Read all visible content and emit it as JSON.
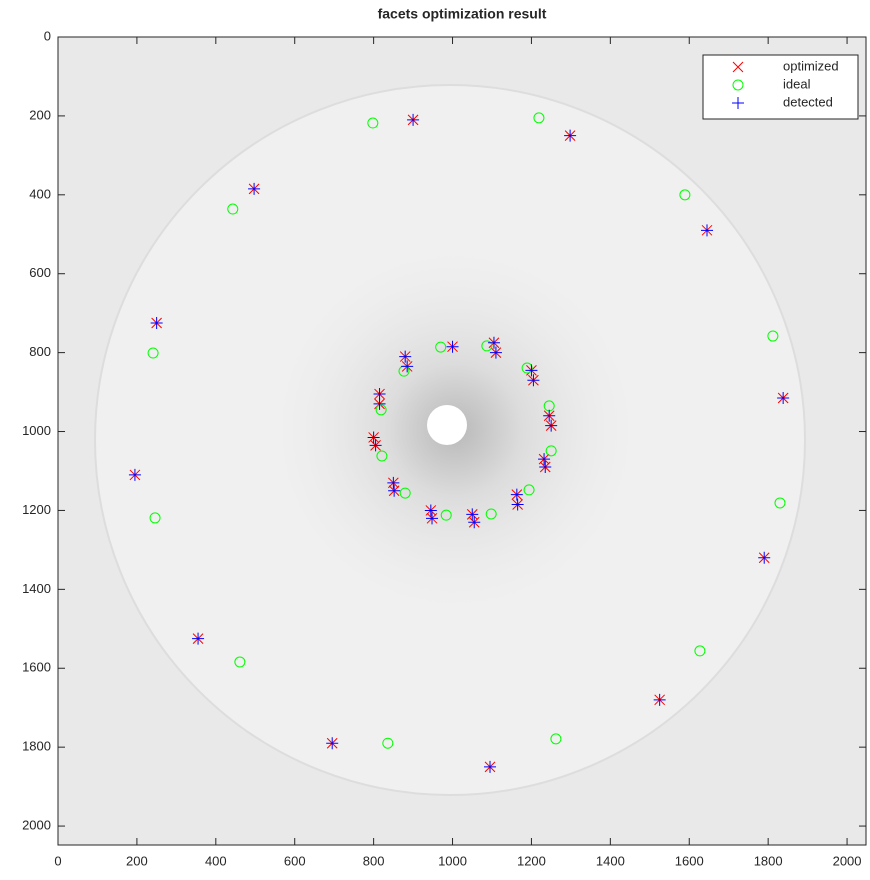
{
  "chart_data": {
    "type": "scatter",
    "title": "facets optimization result",
    "xlim": [
      0,
      2048
    ],
    "ylim": [
      0,
      2048
    ],
    "y_reversed": true,
    "xticks": [
      0,
      200,
      400,
      600,
      800,
      1000,
      1200,
      1400,
      1600,
      1800,
      2000
    ],
    "yticks": [
      0,
      200,
      400,
      600,
      800,
      1000,
      1200,
      1400,
      1600,
      1800,
      2000
    ],
    "legend": "top-right",
    "series": [
      {
        "name": "optimized",
        "color": "#ff0000",
        "marker": "x",
        "x": [
          900,
          1298,
          497,
          1645,
          250,
          1838,
          195,
          1790,
          355,
          1525,
          695,
          1095,
          1000,
          1105,
          1110,
          880,
          885,
          1200,
          1205,
          815,
          815,
          1245,
          1250,
          800,
          805,
          1232,
          1235,
          850,
          852,
          1163,
          1165,
          945,
          948,
          1050,
          1055
        ],
        "y": [
          210,
          250,
          385,
          490,
          725,
          915,
          1110,
          1320,
          1525,
          1680,
          1790,
          1850,
          785,
          775,
          800,
          810,
          835,
          845,
          870,
          905,
          930,
          960,
          985,
          1015,
          1035,
          1070,
          1090,
          1130,
          1150,
          1160,
          1185,
          1200,
          1220,
          1210,
          1230
        ]
      },
      {
        "name": "ideal",
        "color": "#00ff00",
        "marker": "o",
        "x": [
          798,
          1219,
          443,
          1589,
          241,
          1812,
          246,
          1830,
          461,
          1627,
          836,
          1262,
          970,
          1087,
          877,
          1189,
          819,
          1245,
          821,
          1250,
          880,
          1194,
          984,
          1098
        ],
        "y": [
          218,
          205,
          436,
          400,
          801,
          758,
          1219,
          1181,
          1584,
          1556,
          1790,
          1779,
          786,
          783,
          847,
          839,
          945,
          935,
          1062,
          1049,
          1156,
          1148,
          1212,
          1209
        ]
      },
      {
        "name": "detected",
        "color": "#0000ff",
        "marker": "+",
        "x": [
          900,
          1298,
          497,
          1645,
          250,
          1838,
          195,
          1790,
          355,
          1525,
          695,
          1095,
          1000,
          1105,
          1110,
          880,
          885,
          1200,
          1205,
          815,
          815,
          1245,
          1250,
          800,
          805,
          1232,
          1235,
          850,
          852,
          1163,
          1165,
          945,
          948,
          1050,
          1055
        ],
        "y": [
          210,
          250,
          385,
          490,
          725,
          915,
          1110,
          1320,
          1525,
          1680,
          1790,
          1850,
          785,
          775,
          800,
          810,
          835,
          845,
          870,
          905,
          930,
          960,
          985,
          1015,
          1035,
          1070,
          1090,
          1130,
          1150,
          1160,
          1185,
          1200,
          1220,
          1210,
          1230
        ]
      }
    ]
  }
}
